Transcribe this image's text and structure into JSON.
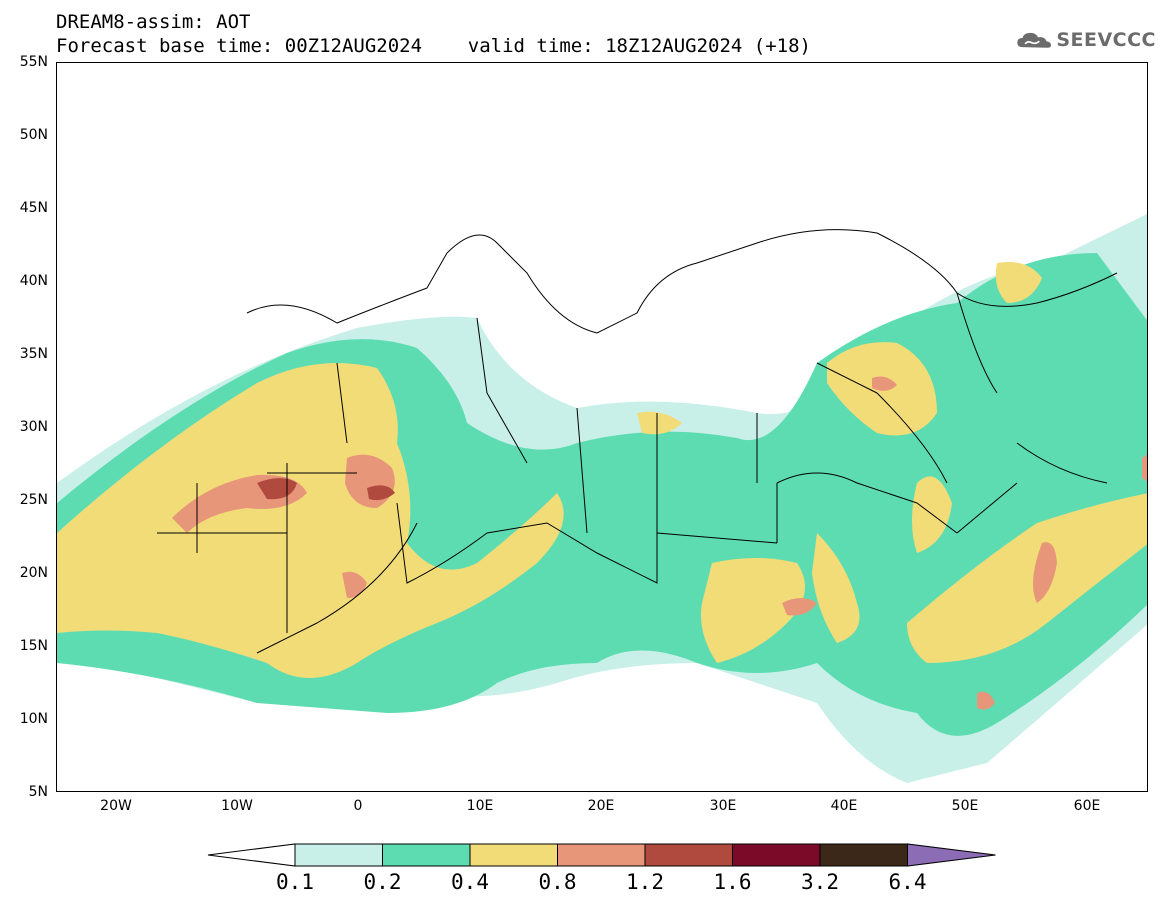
{
  "title": {
    "line1": "DREAM8-assim: AOT",
    "line2": "Forecast base time: 00Z12AUG2024    valid time: 18Z12AUG2024 (+18)"
  },
  "logo": {
    "text": "SEEVCCC",
    "icon": "cloud-logo-icon"
  },
  "axes": {
    "lat_labels": [
      "55N",
      "50N",
      "45N",
      "40N",
      "35N",
      "30N",
      "25N",
      "20N",
      "15N",
      "10N",
      "5N"
    ],
    "lon_labels": [
      "20W",
      "10W",
      "0",
      "10E",
      "20E",
      "30E",
      "40E",
      "50E",
      "60E"
    ]
  },
  "colorbar": {
    "labels": [
      "0.1",
      "0.2",
      "0.4",
      "0.8",
      "1.2",
      "1.6",
      "3.2",
      "6.4"
    ],
    "colors": [
      "#c8f0e8",
      "#5ddcb2",
      "#f2dc78",
      "#e8967a",
      "#b04a3e",
      "#7a0a28",
      "#3c2818",
      "#8c6cb4"
    ],
    "under_color": "#ffffff"
  }
}
